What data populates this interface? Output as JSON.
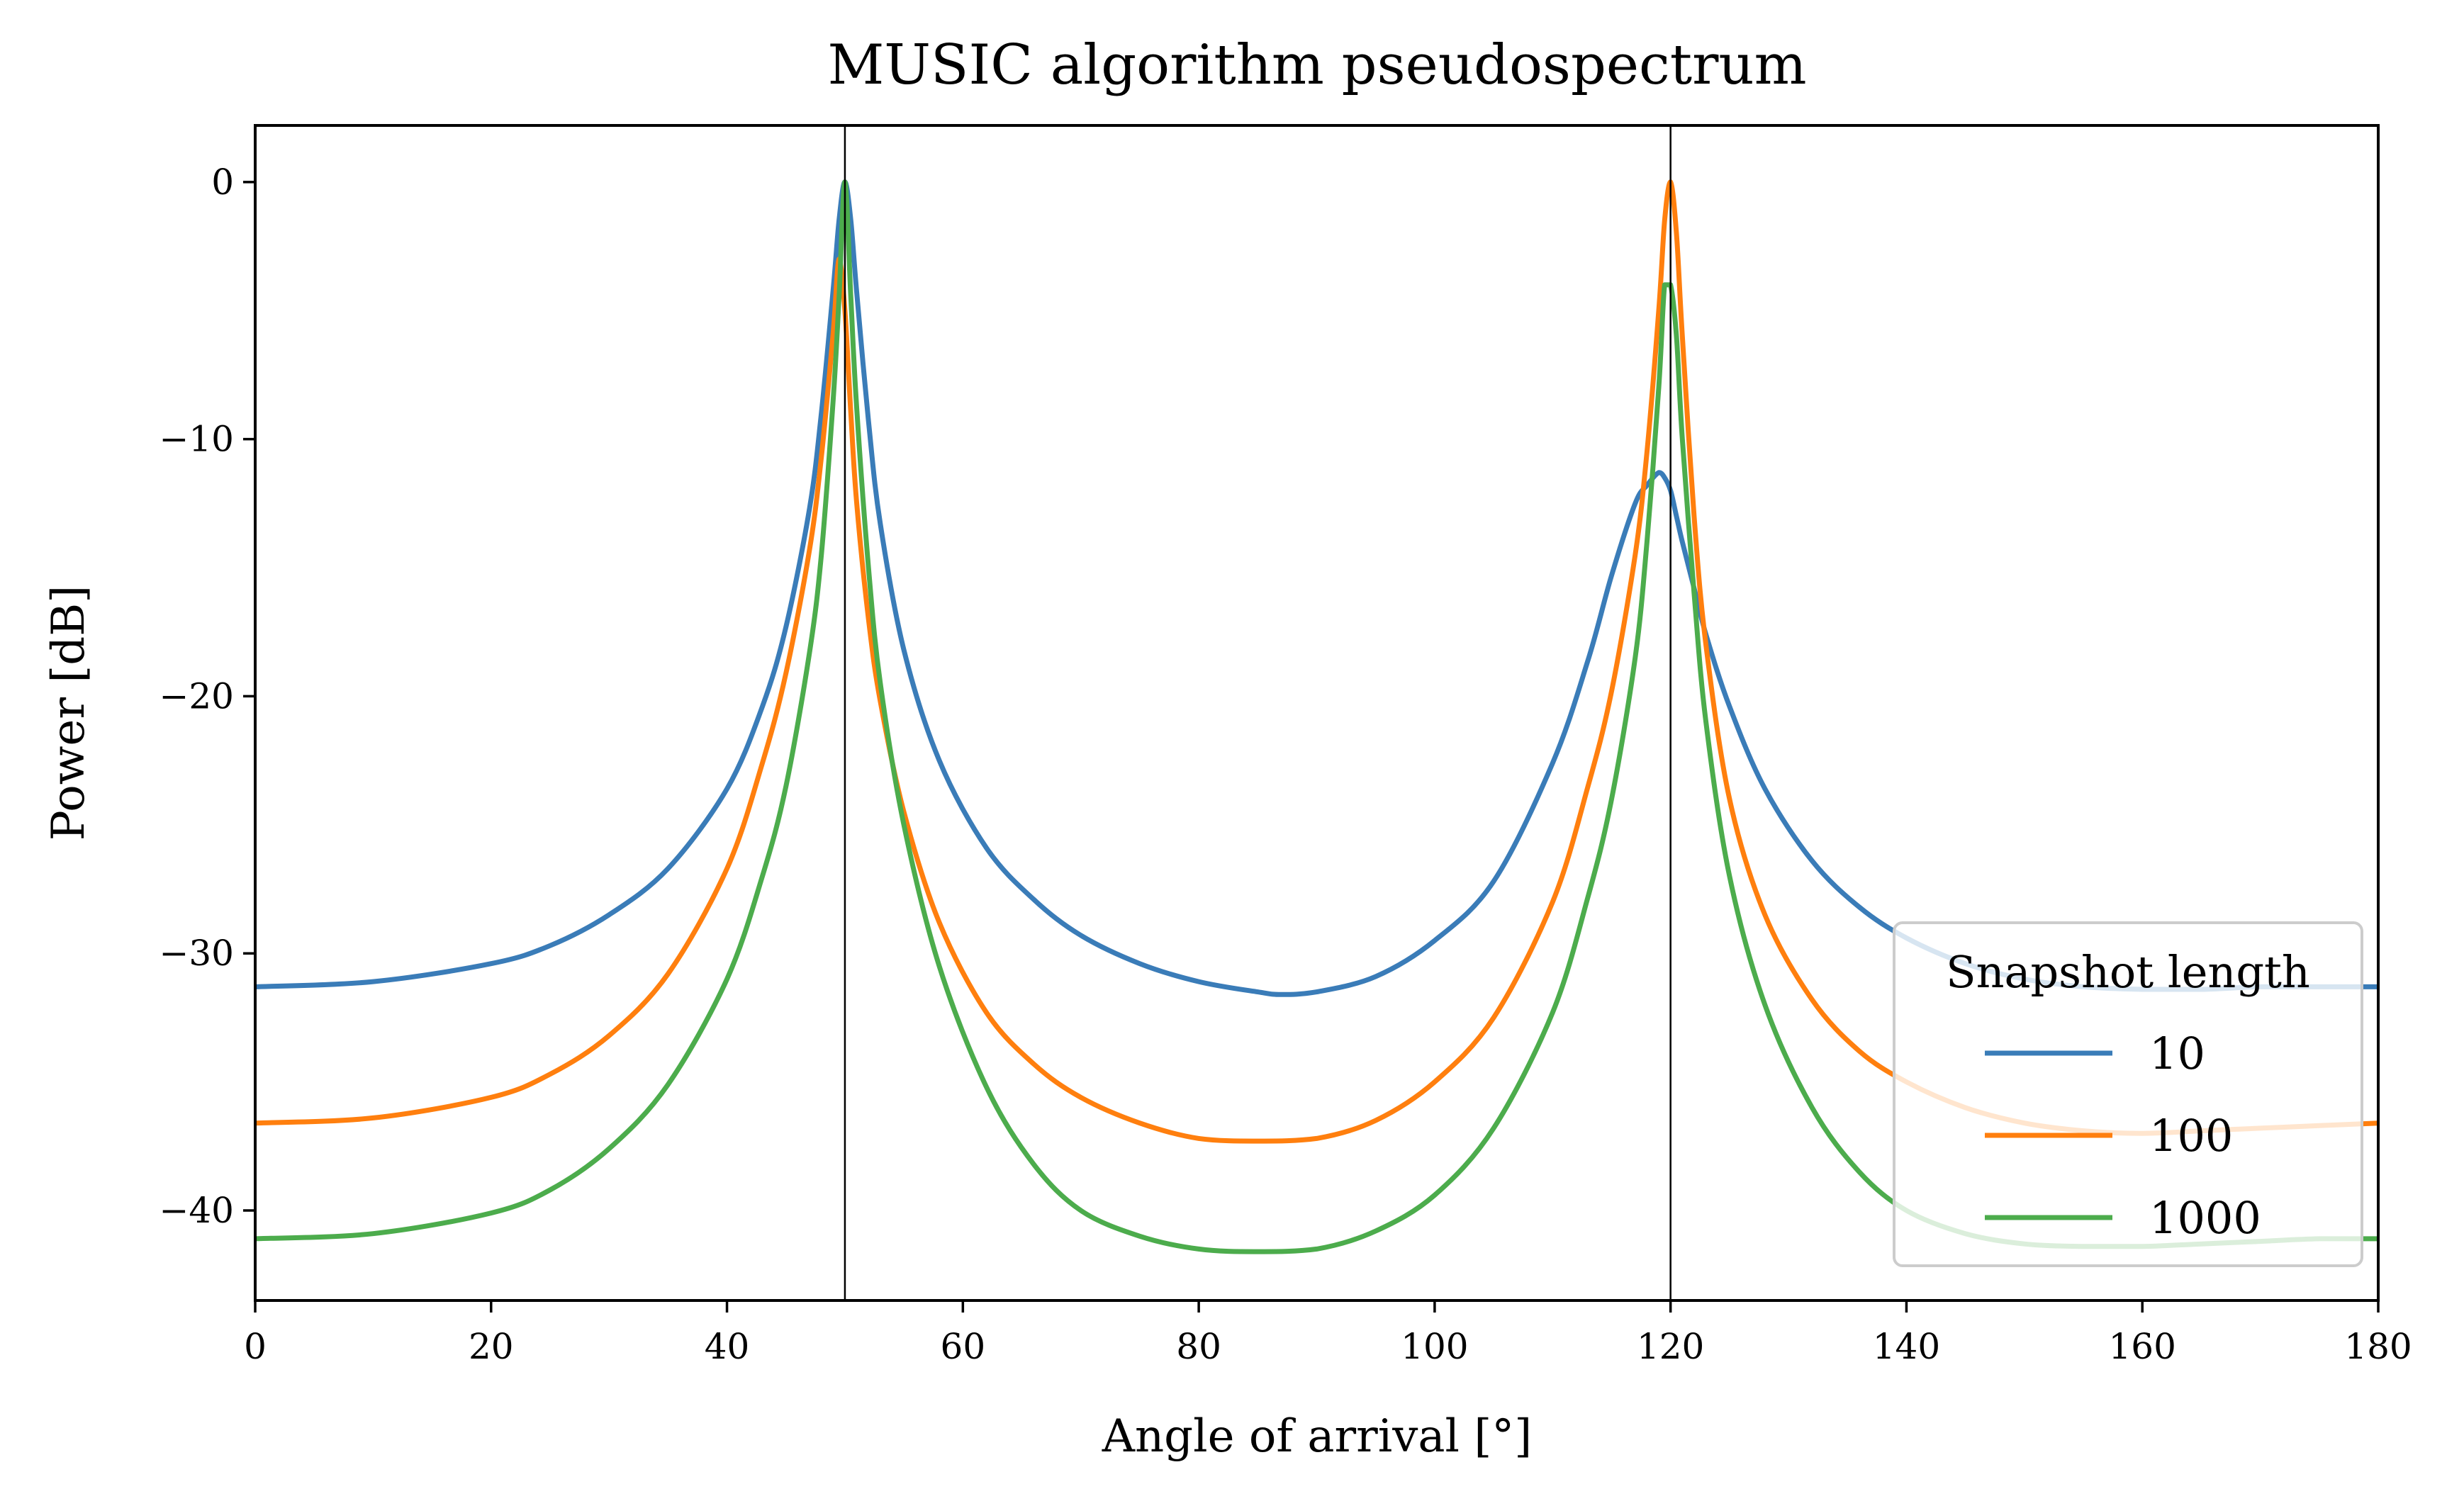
{
  "chart_data": {
    "type": "line",
    "title": "MUSIC algorithm pseudospectrum",
    "xlabel": "Angle of arrival [°]",
    "ylabel": "Power [dB]",
    "xlim": [
      0,
      180
    ],
    "ylim": [
      -43.5,
      2.2
    ],
    "xticks": [
      0,
      20,
      40,
      60,
      80,
      100,
      120,
      140,
      160,
      180
    ],
    "xtick_labels": [
      "0",
      "20",
      "40",
      "60",
      "80",
      "100",
      "120",
      "140",
      "160",
      "180"
    ],
    "yticks": [
      0,
      -10,
      -20,
      -30,
      -40
    ],
    "ytick_labels": [
      "0",
      "−10",
      "−20",
      "−30",
      "−40"
    ],
    "vlines": [
      50,
      120
    ],
    "legend": {
      "title": "Snapshot length",
      "location": "lower right",
      "entries": [
        "10",
        "100",
        "1000"
      ]
    },
    "series": [
      {
        "name": "10",
        "color": "#3a7cb8",
        "x": [
          0,
          10,
          20,
          25,
          30,
          35,
          40,
          43,
          45,
          47,
          48,
          49,
          49.5,
          50,
          50.5,
          51,
          52,
          53,
          55,
          58,
          62,
          66,
          70,
          75,
          80,
          85,
          87,
          90,
          95,
          100,
          105,
          110,
          113,
          115,
          117,
          118,
          119,
          119.5,
          120,
          120.5,
          121,
          122,
          123,
          125,
          128,
          132,
          136,
          140,
          145,
          150,
          155,
          160,
          165,
          170,
          175,
          180
        ],
        "values": [
          -31.3,
          -31.1,
          -30.4,
          -29.7,
          -28.5,
          -26.7,
          -23.6,
          -20.4,
          -17.3,
          -12.7,
          -9.0,
          -4.2,
          -1.5,
          0.0,
          -1.5,
          -4.3,
          -9.3,
          -13.3,
          -18.2,
          -22.5,
          -25.9,
          -27.9,
          -29.3,
          -30.4,
          -31.1,
          -31.5,
          -31.6,
          -31.5,
          -30.9,
          -29.5,
          -27.2,
          -22.6,
          -18.6,
          -15.3,
          -12.5,
          -11.8,
          -11.3,
          -11.5,
          -12.0,
          -13.0,
          -14.0,
          -15.8,
          -17.6,
          -20.4,
          -23.6,
          -26.4,
          -28.2,
          -29.4,
          -30.4,
          -31.0,
          -31.3,
          -31.4,
          -31.4,
          -31.3,
          -31.3,
          -31.3
        ]
      },
      {
        "name": "100",
        "color": "#ff7f0e",
        "x": [
          0,
          10,
          20,
          25,
          30,
          35,
          40,
          43,
          45,
          47,
          48,
          49,
          49.5,
          50,
          50.5,
          51,
          52,
          53,
          55,
          58,
          62,
          66,
          70,
          75,
          80,
          85,
          90,
          95,
          100,
          105,
          110,
          113,
          115,
          117,
          118,
          119,
          119.5,
          120,
          120.5,
          121,
          122,
          123,
          125,
          128,
          132,
          136,
          140,
          145,
          150,
          155,
          160,
          165,
          170,
          175,
          180
        ],
        "values": [
          -36.6,
          -36.4,
          -35.6,
          -34.7,
          -33.2,
          -30.8,
          -26.7,
          -22.6,
          -19.1,
          -14.3,
          -10.7,
          -5.9,
          -3.0,
          -5.0,
          -9.0,
          -12.5,
          -17.0,
          -20.2,
          -24.5,
          -28.8,
          -32.3,
          -34.3,
          -35.6,
          -36.6,
          -37.2,
          -37.3,
          -37.2,
          -36.5,
          -35.0,
          -32.5,
          -28.0,
          -23.5,
          -19.8,
          -14.5,
          -10.5,
          -5.0,
          -1.5,
          0.0,
          -2.0,
          -6.0,
          -13.0,
          -18.0,
          -24.0,
          -28.5,
          -31.8,
          -33.8,
          -35.0,
          -36.0,
          -36.6,
          -36.9,
          -37.0,
          -36.9,
          -36.8,
          -36.7,
          -36.6
        ]
      },
      {
        "name": "1000",
        "color": "#4cac4c",
        "x": [
          0,
          10,
          20,
          25,
          30,
          35,
          40,
          43,
          45,
          47,
          48,
          49,
          49.5,
          50,
          50.5,
          51,
          52,
          53,
          55,
          58,
          62,
          66,
          70,
          75,
          80,
          85,
          90,
          95,
          100,
          105,
          110,
          113,
          115,
          117,
          118,
          119,
          119.5,
          120,
          120.5,
          121,
          122,
          123,
          125,
          128,
          132,
          136,
          140,
          145,
          150,
          155,
          160,
          165,
          170,
          175,
          180
        ],
        "values": [
          -41.1,
          -40.9,
          -40.1,
          -39.2,
          -37.6,
          -35.1,
          -31.0,
          -27.0,
          -23.5,
          -18.3,
          -14.5,
          -8.5,
          -4.5,
          0.0,
          -4.5,
          -8.8,
          -15.0,
          -19.5,
          -25.0,
          -30.5,
          -35.2,
          -38.2,
          -40.0,
          -41.0,
          -41.5,
          -41.6,
          -41.5,
          -40.8,
          -39.4,
          -36.8,
          -32.3,
          -27.8,
          -24.0,
          -18.5,
          -14.0,
          -8.0,
          -4.0,
          -4.0,
          -6.0,
          -10.0,
          -16.0,
          -21.0,
          -27.0,
          -32.0,
          -36.0,
          -38.5,
          -40.0,
          -40.9,
          -41.3,
          -41.4,
          -41.4,
          -41.3,
          -41.2,
          -41.1,
          -41.1
        ]
      }
    ]
  }
}
